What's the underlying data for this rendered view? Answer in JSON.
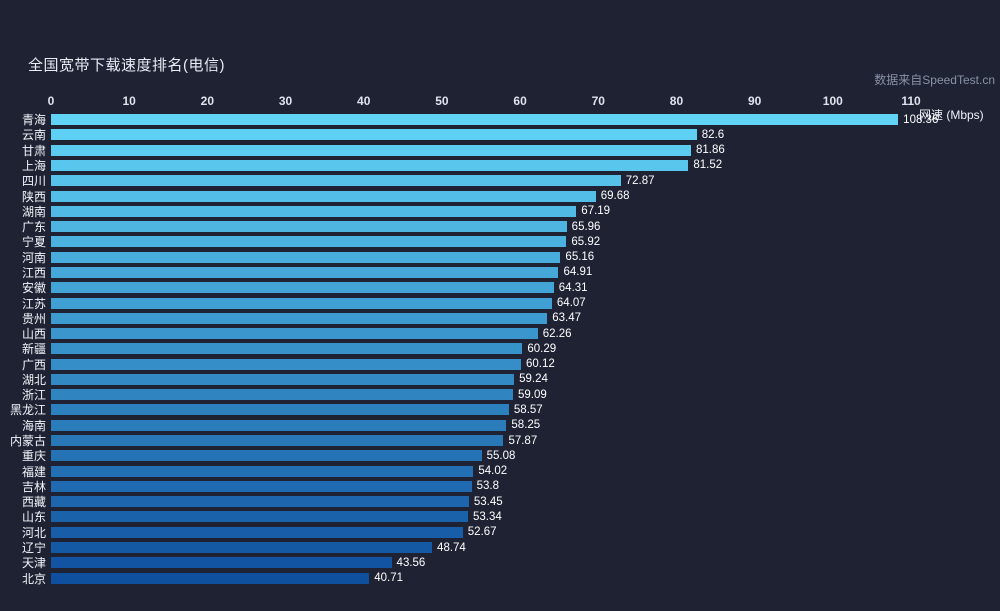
{
  "title": "全国宽带下载速度排名(电信)",
  "source": "数据来自SpeedTest.cn",
  "chart_data": {
    "type": "bar",
    "orientation": "horizontal",
    "title": "全国宽带下载速度排名(电信)",
    "xlabel": "网速  (Mbps)",
    "ylabel": "",
    "xlim": [
      0,
      110
    ],
    "x_ticks": [
      0,
      10,
      20,
      30,
      40,
      50,
      60,
      70,
      80,
      90,
      100,
      110
    ],
    "grid": false,
    "legend_position": "none",
    "value_labels": "outside-end",
    "categories": [
      "青海",
      "云南",
      "甘肃",
      "上海",
      "四川",
      "陕西",
      "湖南",
      "广东",
      "宁夏",
      "河南",
      "江西",
      "安徽",
      "江苏",
      "贵州",
      "山西",
      "新疆",
      "广西",
      "湖北",
      "浙江",
      "黑龙江",
      "海南",
      "内蒙古",
      "重庆",
      "福建",
      "吉林",
      "西藏",
      "山东",
      "河北",
      "辽宁",
      "天津",
      "北京"
    ],
    "values": [
      108.36,
      82.6,
      81.86,
      81.52,
      72.87,
      69.68,
      67.19,
      65.96,
      65.92,
      65.16,
      64.91,
      64.31,
      64.07,
      63.47,
      62.26,
      60.29,
      60.12,
      59.24,
      59.09,
      58.57,
      58.25,
      57.87,
      55.08,
      54.02,
      53.8,
      53.45,
      53.34,
      52.67,
      48.74,
      43.56,
      40.71
    ],
    "colors": {
      "background": "#1e2233",
      "bar_gradient_start": "#61d4f6",
      "bar_gradient_end": "#0f509e",
      "title_text": "#e8ecf4",
      "tick_text": "#dfe4ee",
      "category_text": "#f2f5fa",
      "value_text": "#ffffff",
      "source_text": "#8a92a6"
    }
  }
}
